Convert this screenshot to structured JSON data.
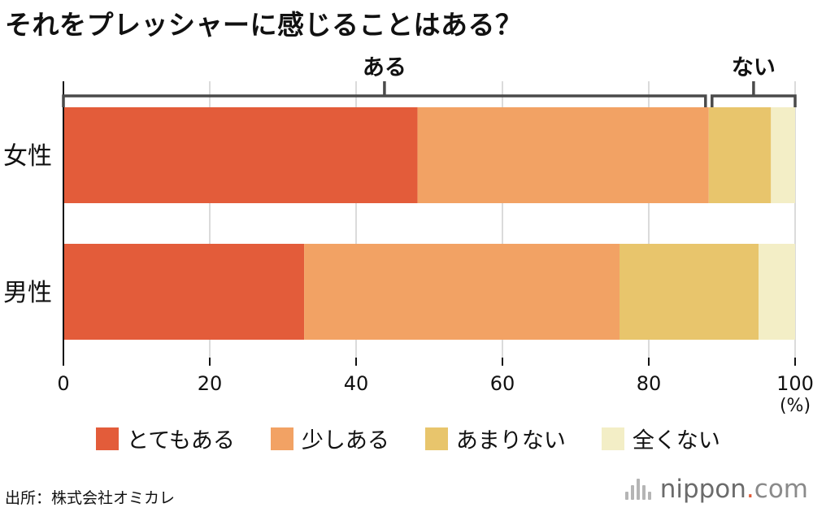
{
  "title": "それをプレッシャーに感じることはある？",
  "chart_data": {
    "type": "bar",
    "orientation": "horizontal",
    "stacked": true,
    "categories": [
      "女性",
      "男性"
    ],
    "series": [
      {
        "name": "とてもある",
        "values": [
          48.4,
          32.9
        ],
        "color": "#e35c3a"
      },
      {
        "name": "少しある",
        "values": [
          39.8,
          43.1
        ],
        "color": "#f2a264"
      },
      {
        "name": "あまりない",
        "values": [
          8.5,
          19.0
        ],
        "color": "#e8c56c"
      },
      {
        "name": "全くない",
        "values": [
          3.3,
          5.0
        ],
        "color": "#f3eec6"
      }
    ],
    "xlim": [
      0,
      100
    ],
    "x_ticks": [
      0,
      20,
      40,
      60,
      80,
      100
    ],
    "x_unit": "(%)",
    "grid": true,
    "brackets": [
      {
        "label": "ある",
        "from": 0,
        "to": 88.2
      },
      {
        "label": "ない",
        "from": 88.2,
        "to": 100
      }
    ]
  },
  "legend": [
    {
      "label": "とてもある",
      "color": "#e35c3a"
    },
    {
      "label": "少しある",
      "color": "#f2a264"
    },
    {
      "label": "あまりない",
      "color": "#e8c56c"
    },
    {
      "label": "全くない",
      "color": "#f3eec6"
    }
  ],
  "source": "出所：株式会社オミカレ",
  "logo": {
    "name": "nippon",
    "dot": ".",
    "tld": "com"
  }
}
